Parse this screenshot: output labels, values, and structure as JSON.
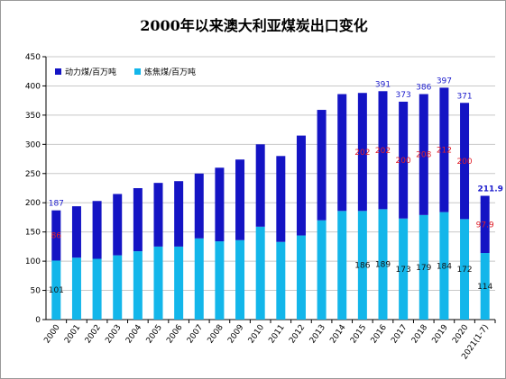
{
  "chart_data": {
    "type": "bar",
    "stacked": true,
    "title": "2000年以来澳大利亚煤炭出口变化",
    "categories": [
      "2000",
      "2001",
      "2002",
      "2003",
      "2004",
      "2005",
      "2006",
      "2007",
      "2008",
      "2009",
      "2010",
      "2011",
      "2012",
      "2013",
      "2014",
      "2015",
      "2016",
      "2017",
      "2018",
      "2019",
      "2020",
      "2021(1-7)"
    ],
    "ylim": [
      0,
      450
    ],
    "yticks": [
      0,
      50,
      100,
      150,
      200,
      250,
      300,
      350,
      400,
      450
    ],
    "grid": true,
    "legend_position": "top-left",
    "series": [
      {
        "name": "炼焦煤/百万吨",
        "color": "#13b6ea",
        "values": [
          101,
          106,
          104,
          110,
          117,
          125,
          125,
          139,
          134,
          136,
          159,
          133,
          144,
          170,
          186,
          186,
          189,
          173,
          179,
          184,
          172,
          114
        ]
      },
      {
        "name": "动力煤/百万吨",
        "color": "#1414c4",
        "values": [
          86,
          88,
          99,
          105,
          108,
          109,
          112,
          111,
          126,
          138,
          141,
          147,
          171,
          189,
          200,
          202,
          202,
          200,
          208,
          212,
          200,
          97.9
        ]
      }
    ],
    "totals": [
      187,
      194,
      203,
      215,
      225,
      234,
      237,
      250,
      260,
      274,
      300,
      280,
      315,
      359,
      386,
      388,
      391,
      373,
      386,
      397,
      371,
      211.9
    ],
    "labels": {
      "total": {
        "indices": [
          0,
          16,
          17,
          18,
          19,
          20,
          21
        ],
        "text": [
          "187",
          "391",
          "373",
          "386",
          "397",
          "371",
          "211.9"
        ],
        "color": "#1a1acc"
      },
      "thermal": {
        "indices": [
          0,
          15,
          16,
          17,
          18,
          19,
          20,
          21
        ],
        "text": [
          "86",
          "202",
          "202",
          "200",
          "208",
          "212",
          "200",
          "97.9"
        ],
        "color": "#e0202a"
      },
      "coking": {
        "indices": [
          0,
          15,
          16,
          17,
          18,
          19,
          20,
          21
        ],
        "text": [
          "101",
          "186",
          "189",
          "173",
          "179",
          "184",
          "172",
          "114"
        ],
        "color": "#111111"
      }
    }
  }
}
